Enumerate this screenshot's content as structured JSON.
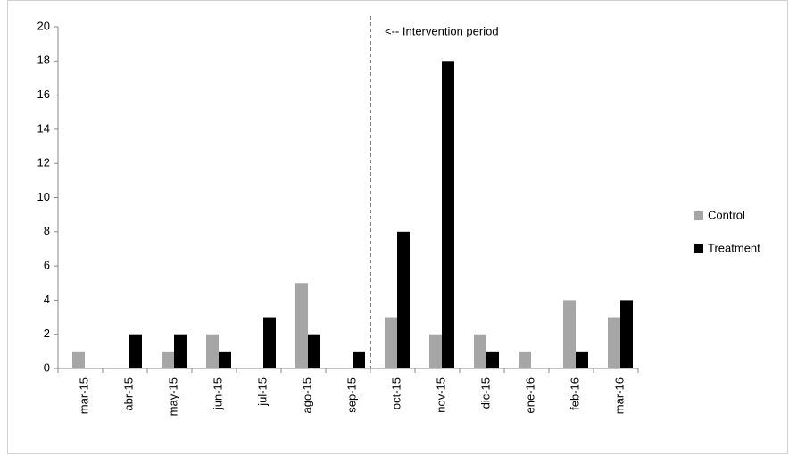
{
  "chart_data": {
    "type": "bar",
    "annotation": "<-- Intervention   period",
    "categories": [
      "mar-15",
      "abr-15",
      "may-15",
      "jun-15",
      "jul-15",
      "ago-15",
      "sep-15",
      "oct-15",
      "nov-15",
      "dic-15",
      "ene-16",
      "feb-16",
      "mar-16"
    ],
    "series": [
      {
        "name": "Control",
        "color": "#a6a6a6",
        "values": [
          1,
          0,
          1,
          2,
          0,
          5,
          0,
          3,
          2,
          2,
          1,
          4,
          3
        ]
      },
      {
        "name": "Treatment",
        "color": "#000000",
        "values": [
          0,
          2,
          2,
          1,
          3,
          2,
          1,
          8,
          18,
          1,
          0,
          1,
          4
        ]
      }
    ],
    "ylim": [
      0,
      20
    ],
    "yticks": [
      0,
      2,
      4,
      6,
      8,
      10,
      12,
      14,
      16,
      18,
      20
    ],
    "legend": "right"
  }
}
